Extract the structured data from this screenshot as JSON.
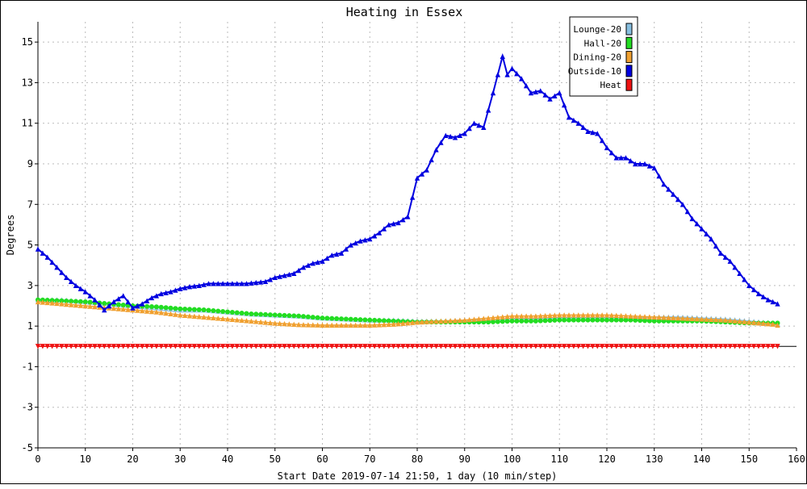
{
  "chart_data": {
    "type": "line",
    "title": "Heating in Essex",
    "xlabel": "Start Date 2019-07-14 21:50, 1 day (10 min/step)",
    "ylabel": "Degrees",
    "xlim": [
      0,
      160
    ],
    "ylim": [
      -5,
      16
    ],
    "xticks": [
      0,
      10,
      20,
      30,
      40,
      50,
      60,
      70,
      80,
      90,
      100,
      110,
      120,
      130,
      140,
      150,
      160
    ],
    "yticks": [
      -5,
      -3,
      -1,
      1,
      3,
      5,
      7,
      9,
      11,
      13,
      15
    ],
    "grid": true,
    "legend_position": "top-right",
    "series": [
      {
        "name": "Lounge-20",
        "color": "#87bfe0",
        "marker": "triangle",
        "x": [
          0,
          5,
          10,
          15,
          20,
          25,
          30,
          35,
          40,
          45,
          50,
          55,
          60,
          65,
          70,
          75,
          80,
          85,
          90,
          95,
          100,
          105,
          110,
          115,
          120,
          125,
          130,
          135,
          140,
          145,
          150,
          155,
          156
        ],
        "y": [
          2.3,
          2.3,
          2.2,
          2.1,
          2.0,
          1.9,
          1.8,
          1.8,
          1.7,
          1.6,
          1.55,
          1.5,
          1.4,
          1.35,
          1.3,
          1.3,
          1.25,
          1.25,
          1.3,
          1.3,
          1.35,
          1.35,
          1.4,
          1.4,
          1.4,
          1.4,
          1.45,
          1.45,
          1.4,
          1.35,
          1.25,
          1.15,
          1.1
        ]
      },
      {
        "name": "Hall-20",
        "color": "#22dd22",
        "marker": "circle",
        "x": [
          0,
          5,
          10,
          15,
          20,
          25,
          30,
          35,
          40,
          45,
          50,
          55,
          60,
          65,
          70,
          75,
          80,
          85,
          90,
          95,
          100,
          105,
          110,
          115,
          120,
          125,
          130,
          135,
          140,
          145,
          150,
          155,
          156
        ],
        "y": [
          2.3,
          2.25,
          2.2,
          2.1,
          2.0,
          1.95,
          1.85,
          1.8,
          1.7,
          1.6,
          1.55,
          1.5,
          1.4,
          1.35,
          1.3,
          1.25,
          1.2,
          1.2,
          1.2,
          1.2,
          1.25,
          1.25,
          1.3,
          1.3,
          1.3,
          1.3,
          1.25,
          1.25,
          1.25,
          1.2,
          1.15,
          1.15,
          1.15
        ]
      },
      {
        "name": "Dining-20",
        "color": "#f0a030",
        "marker": "triangle",
        "x": [
          0,
          5,
          10,
          15,
          20,
          25,
          30,
          35,
          40,
          45,
          50,
          55,
          60,
          65,
          70,
          75,
          80,
          85,
          90,
          95,
          100,
          105,
          110,
          115,
          120,
          125,
          130,
          135,
          140,
          145,
          150,
          155,
          156
        ],
        "y": [
          2.2,
          2.1,
          2.0,
          1.9,
          1.8,
          1.7,
          1.55,
          1.45,
          1.35,
          1.25,
          1.15,
          1.08,
          1.05,
          1.05,
          1.05,
          1.1,
          1.2,
          1.25,
          1.3,
          1.4,
          1.5,
          1.5,
          1.55,
          1.55,
          1.55,
          1.5,
          1.45,
          1.4,
          1.35,
          1.3,
          1.2,
          1.1,
          1.05
        ]
      },
      {
        "name": "Outside-10",
        "color": "#0000e0",
        "marker": "triangle",
        "x": [
          0,
          2,
          4,
          6,
          8,
          10,
          12,
          14,
          16,
          18,
          20,
          22,
          24,
          26,
          28,
          30,
          32,
          34,
          36,
          38,
          40,
          42,
          44,
          46,
          48,
          50,
          52,
          54,
          56,
          58,
          60,
          62,
          64,
          66,
          68,
          70,
          72,
          74,
          76,
          78,
          80,
          82,
          84,
          86,
          88,
          90,
          92,
          94,
          96,
          98,
          99,
          100,
          102,
          104,
          106,
          108,
          110,
          112,
          114,
          116,
          118,
          120,
          122,
          124,
          126,
          128,
          130,
          132,
          134,
          136,
          138,
          140,
          142,
          144,
          146,
          148,
          150,
          152,
          154,
          156
        ],
        "y": [
          4.8,
          4.4,
          3.9,
          3.4,
          3.0,
          2.7,
          2.3,
          1.8,
          2.2,
          2.5,
          1.9,
          2.1,
          2.4,
          2.6,
          2.7,
          2.85,
          2.95,
          3.0,
          3.1,
          3.1,
          3.1,
          3.1,
          3.1,
          3.15,
          3.2,
          3.4,
          3.5,
          3.6,
          3.9,
          4.1,
          4.2,
          4.5,
          4.6,
          5.0,
          5.2,
          5.3,
          5.6,
          6.0,
          6.1,
          6.4,
          8.3,
          8.7,
          9.7,
          10.4,
          10.3,
          10.5,
          11.0,
          10.8,
          12.5,
          14.3,
          13.4,
          13.7,
          13.2,
          12.5,
          12.6,
          12.2,
          12.5,
          11.3,
          11.0,
          10.6,
          10.5,
          9.8,
          9.3,
          9.3,
          9.0,
          9.0,
          8.8,
          8.0,
          7.5,
          7.0,
          6.3,
          5.8,
          5.3,
          4.6,
          4.2,
          3.6,
          3.0,
          2.6,
          2.3,
          2.1
        ]
      },
      {
        "name": "Heat",
        "color": "#ee1111",
        "marker": "triangle-down",
        "x": [
          0,
          156
        ],
        "y": [
          0,
          0
        ]
      }
    ]
  }
}
